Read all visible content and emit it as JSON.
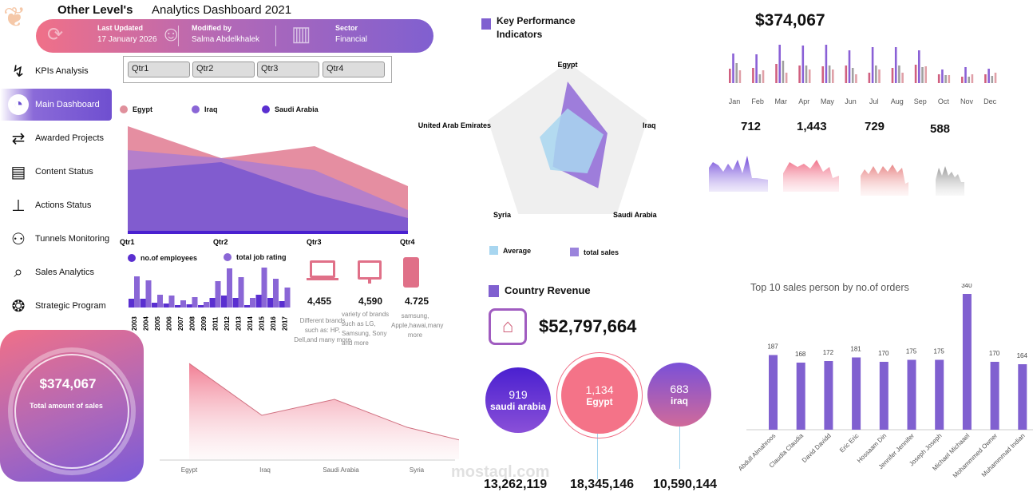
{
  "header": {
    "brand": "Other Level's",
    "title": "Analytics Dashboard 2021",
    "last_updated_label": "Last Updated",
    "last_updated": "17 January 2026",
    "modified_by_label": "Modified by",
    "modified_by": "Salma Abdelkhalek",
    "sector_label": "Sector",
    "sector": "Financial"
  },
  "sidebar": {
    "items": [
      {
        "label": "KPIs Analysis",
        "icon": "line-chart-icon"
      },
      {
        "label": "Main Dashboard",
        "icon": "pie-chart-icon",
        "active": true
      },
      {
        "label": "Awarded Projects",
        "icon": "flow-icon"
      },
      {
        "label": "Content Status",
        "icon": "id-card-icon"
      },
      {
        "label": "Actions Status",
        "icon": "org-chart-icon"
      },
      {
        "label": "Tunnels Monitoring",
        "icon": "people-growth-icon"
      },
      {
        "label": "Sales Analytics",
        "icon": "magnifier-icon"
      },
      {
        "label": "Strategic Program",
        "icon": "venn-icon"
      }
    ]
  },
  "slicer": {
    "buttons": [
      "Qtr1",
      "Qtr2",
      "Qtr3",
      "Qtr4"
    ]
  },
  "total_card": {
    "value": "$374,067",
    "label": "Total amount of sales"
  },
  "colors": {
    "pink": "#e07a90",
    "purple": "#8a66d6",
    "deep": "#5a2fd0",
    "gray": "#a0a0a0",
    "lightblue": "#9fd3ee"
  },
  "chart_data": [
    {
      "type": "area",
      "categories": [
        "Qtr1",
        "Qtr2",
        "Qtr3",
        "Qtr4"
      ],
      "series": [
        {
          "name": "Egypt",
          "values": [
            135,
            95,
            110,
            60
          ]
        },
        {
          "name": "Iraq",
          "values": [
            105,
            95,
            80,
            30
          ]
        },
        {
          "name": "Saudi Arabia",
          "values": [
            80,
            90,
            50,
            20
          ]
        }
      ]
    },
    {
      "type": "bar",
      "categories": [
        "2003",
        "2004",
        "2005",
        "2006",
        "2007",
        "2008",
        "2009",
        "2011",
        "2012",
        "2013",
        "2014",
        "2015",
        "2016",
        "2017"
      ],
      "series": [
        {
          "name": "no.of employees",
          "values": [
            11,
            11,
            6,
            5,
            3,
            4,
            3,
            12,
            15,
            12,
            3,
            16,
            12,
            8
          ]
        },
        {
          "name": "total job rating",
          "values": [
            39,
            34,
            16,
            15,
            9,
            13,
            7,
            33,
            49,
            38,
            12,
            50,
            36,
            25
          ]
        }
      ]
    },
    {
      "type": "area",
      "categories": [
        "Egypt",
        "Iraq",
        "Saudi Arabia",
        "Syria",
        "United Arab Emirates"
      ],
      "values": [
        120,
        55,
        75,
        40,
        18
      ]
    },
    {
      "type": "radar",
      "title": "Key Performance Indicators",
      "categories": [
        "Egypt",
        "Iraq",
        "Saudi Arabia",
        "Syria",
        "United Arab Emirates"
      ],
      "series": [
        {
          "name": "Average",
          "values": [
            0.45,
            0.45,
            0.4,
            0.35,
            0.35
          ]
        },
        {
          "name": "total sales",
          "values": [
            0.77,
            0.5,
            0.62,
            0.3,
            0.15
          ]
        }
      ]
    },
    {
      "type": "bar",
      "title": "$374,067",
      "categories": [
        "Jan",
        "Feb",
        "Mar",
        "Apr",
        "May",
        "Jun",
        "Jul",
        "Aug",
        "Sep",
        "Oct",
        "Nov",
        "Dec"
      ],
      "series": [
        {
          "values": [
            18,
            19,
            24,
            22,
            21,
            22,
            13,
            19,
            23,
            11,
            8,
            11
          ]
        },
        {
          "values": [
            37,
            36,
            48,
            47,
            48,
            41,
            45,
            45,
            41,
            17,
            20,
            18
          ]
        },
        {
          "values": [
            25,
            11,
            28,
            22,
            22,
            19,
            22,
            22,
            20,
            10,
            8,
            9
          ]
        },
        {
          "values": [
            16,
            16,
            13,
            17,
            17,
            11,
            17,
            13,
            21,
            10,
            11,
            13
          ]
        }
      ]
    },
    {
      "type": "bar",
      "title": "Top 10 sales person by no.of orders",
      "categories": [
        "Abdull Almahroos",
        "Claudia Claudia",
        "David Davidd",
        "Eric Eric",
        "Hossaam Din",
        "Jennifer Jennifer",
        "Joseph Joseph",
        "Michael Michaael",
        "Mohammmed Owner",
        "Muhammmad Indian"
      ],
      "values": [
        187,
        168,
        172,
        181,
        170,
        175,
        175,
        340,
        170,
        164
      ]
    }
  ],
  "sparks": [
    {
      "value": "712"
    },
    {
      "value": "1,443"
    },
    {
      "value": "729"
    },
    {
      "value": "588"
    }
  ],
  "devices": [
    {
      "icon": "laptop-icon",
      "value": "4,455",
      "desc": "Different brands such as: HP, Dell,and many more"
    },
    {
      "icon": "monitor-icon",
      "value": "4,590",
      "desc": "variety of brands such as LG, Samsung, Sony and more"
    },
    {
      "icon": "phone-icon",
      "value": "4.725",
      "desc": "samsung, Apple,hawai,many more"
    }
  ],
  "country_revenue": {
    "title": "Country Revenue",
    "value": "$52,797,664",
    "countries": [
      {
        "name": "saudi arabia",
        "count": "919",
        "total": "13,262,119"
      },
      {
        "name": "Egypt",
        "count": "1,134",
        "total": "18,345,146"
      },
      {
        "name": "iraq",
        "count": "683",
        "total": "10,590,144"
      }
    ]
  },
  "watermark": {
    "text": "mostaql.com"
  }
}
